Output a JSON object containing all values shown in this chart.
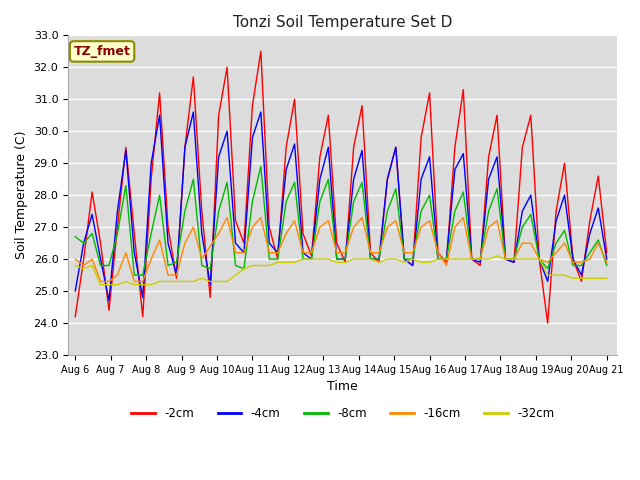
{
  "title": "Tonzi Soil Temperature Set D",
  "xlabel": "Time",
  "ylabel": "Soil Temperature (C)",
  "ylim": [
    23.0,
    33.0
  ],
  "yticks": [
    23.0,
    24.0,
    25.0,
    26.0,
    27.0,
    28.0,
    29.0,
    30.0,
    31.0,
    32.0,
    33.0
  ],
  "colors": {
    "-2cm": "#ff0000",
    "-4cm": "#0000ff",
    "-8cm": "#00bb00",
    "-16cm": "#ff8800",
    "-32cm": "#cccc00"
  },
  "legend_label": "TZ_fmet",
  "plot_bg_color": "#dcdcdc",
  "fig_bg_color": "#ffffff",
  "x_tick_labels": [
    "Aug 6",
    "Aug 7",
    "Aug 8",
    "Aug 9",
    "Aug 10",
    "Aug 11",
    "Aug 12",
    "Aug 13",
    "Aug 14",
    "Aug 15",
    "Aug 16",
    "Aug 17",
    "Aug 18",
    "Aug 19",
    "Aug 20",
    "Aug 21"
  ],
  "n_days": 16,
  "pts_per_day": 4,
  "series": {
    "-2cm": [
      24.2,
      26.0,
      28.1,
      26.5,
      24.4,
      27.0,
      29.5,
      26.8,
      24.2,
      28.5,
      31.2,
      27.0,
      25.4,
      29.5,
      31.7,
      27.5,
      24.8,
      30.5,
      32.0,
      27.2,
      26.5,
      30.8,
      32.5,
      27.0,
      26.0,
      29.5,
      31.0,
      26.8,
      26.1,
      29.2,
      30.5,
      26.5,
      25.9,
      29.5,
      30.8,
      26.2,
      25.9,
      28.5,
      29.5,
      26.0,
      25.8,
      29.8,
      31.2,
      26.2,
      25.9,
      29.5,
      31.3,
      26.0,
      25.8,
      29.2,
      30.5,
      26.0,
      25.9,
      29.5,
      30.5,
      26.0,
      24.0,
      27.5,
      29.0,
      26.0,
      25.3,
      27.2,
      28.6,
      26.2
    ],
    "-4cm": [
      25.0,
      26.5,
      27.4,
      26.0,
      24.7,
      27.5,
      29.4,
      26.2,
      24.8,
      29.0,
      30.5,
      26.5,
      25.5,
      29.5,
      30.6,
      26.8,
      25.2,
      29.2,
      30.0,
      26.5,
      26.2,
      29.8,
      30.6,
      26.5,
      26.2,
      28.8,
      29.6,
      26.2,
      26.0,
      28.5,
      29.5,
      26.0,
      26.0,
      28.5,
      29.4,
      26.0,
      26.0,
      28.5,
      29.5,
      26.0,
      25.8,
      28.5,
      29.2,
      26.0,
      26.0,
      28.8,
      29.3,
      26.0,
      25.9,
      28.5,
      29.2,
      26.0,
      25.9,
      27.5,
      28.0,
      26.0,
      25.3,
      27.2,
      28.0,
      26.0,
      25.5,
      26.8,
      27.6,
      26.0
    ],
    "-8cm": [
      26.7,
      26.5,
      26.8,
      25.8,
      25.8,
      26.8,
      28.3,
      25.5,
      25.5,
      26.8,
      28.0,
      25.8,
      25.9,
      27.5,
      28.5,
      25.8,
      25.7,
      27.5,
      28.4,
      25.8,
      25.7,
      27.8,
      28.9,
      26.0,
      26.0,
      27.8,
      28.4,
      26.0,
      26.0,
      27.8,
      28.5,
      26.0,
      26.0,
      27.8,
      28.4,
      26.0,
      26.0,
      27.5,
      28.2,
      26.0,
      26.0,
      27.5,
      28.0,
      26.0,
      26.0,
      27.5,
      28.1,
      26.0,
      26.0,
      27.5,
      28.2,
      26.0,
      26.0,
      27.0,
      27.4,
      26.0,
      25.7,
      26.5,
      26.9,
      25.8,
      25.8,
      26.2,
      26.6,
      25.8
    ],
    "-16cm": [
      26.0,
      25.8,
      26.0,
      25.3,
      25.3,
      25.5,
      26.2,
      25.3,
      25.3,
      26.0,
      26.6,
      25.5,
      25.5,
      26.5,
      27.0,
      26.0,
      26.4,
      26.8,
      27.3,
      26.2,
      26.2,
      27.0,
      27.3,
      26.2,
      26.2,
      26.8,
      27.2,
      26.2,
      26.2,
      27.0,
      27.2,
      26.2,
      26.2,
      27.0,
      27.3,
      26.2,
      26.2,
      27.0,
      27.2,
      26.2,
      26.2,
      27.0,
      27.2,
      26.2,
      25.8,
      27.0,
      27.3,
      26.0,
      26.0,
      27.0,
      27.2,
      26.0,
      26.0,
      26.5,
      26.5,
      26.0,
      25.9,
      26.2,
      26.5,
      25.9,
      25.9,
      26.0,
      26.5,
      25.9
    ],
    "-32cm": [
      25.8,
      25.7,
      25.8,
      25.2,
      25.2,
      25.2,
      25.3,
      25.2,
      25.2,
      25.2,
      25.3,
      25.3,
      25.3,
      25.3,
      25.3,
      25.4,
      25.3,
      25.3,
      25.3,
      25.5,
      25.7,
      25.8,
      25.8,
      25.8,
      25.9,
      25.9,
      25.9,
      26.0,
      26.0,
      26.0,
      26.0,
      25.9,
      25.9,
      26.0,
      26.0,
      26.0,
      25.9,
      26.0,
      26.0,
      25.9,
      26.0,
      25.9,
      25.9,
      26.0,
      26.0,
      26.0,
      26.0,
      26.0,
      26.0,
      26.0,
      26.1,
      26.0,
      26.0,
      26.0,
      26.0,
      26.0,
      25.5,
      25.5,
      25.5,
      25.4,
      25.4,
      25.4,
      25.4,
      25.4
    ]
  }
}
